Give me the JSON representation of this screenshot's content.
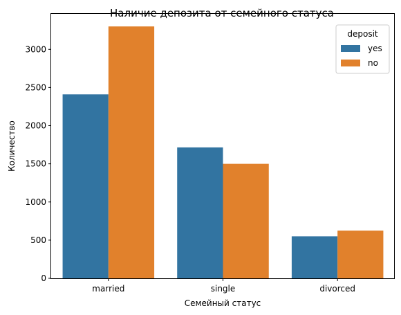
{
  "chart_data": {
    "type": "bar",
    "title": "Наличие депозита от семейного статуса",
    "xlabel": "Семейный статус",
    "ylabel": "Количество",
    "categories": [
      "married",
      "single",
      "divorced"
    ],
    "series": [
      {
        "name": "yes",
        "values": [
          2410,
          1715,
          550
        ],
        "color": "#3274a1"
      },
      {
        "name": "no",
        "values": [
          3300,
          1500,
          625
        ],
        "color": "#e1812c"
      }
    ],
    "ylim": [
      0,
      3465
    ],
    "yticks": [
      0,
      500,
      1000,
      1500,
      2000,
      2500,
      3000
    ],
    "legend": {
      "title": "deposit",
      "placement": "top-right"
    },
    "grid": false
  }
}
